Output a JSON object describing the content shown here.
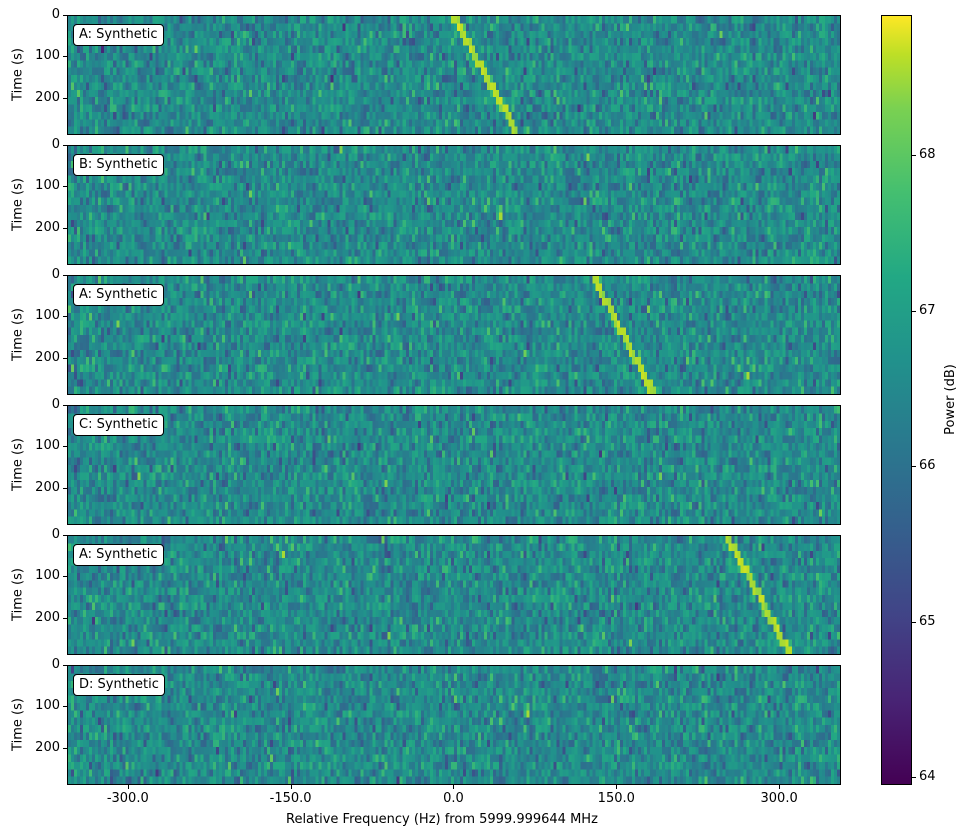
{
  "chart_data": {
    "type": "heatmap",
    "title": "",
    "xlabel": "Relative Frequency (Hz) from 5999.999644 MHz",
    "ylabel": "Time (s)",
    "xlim": [
      -356,
      357
    ],
    "ylim": [
      290,
      0
    ],
    "x_ticks": [
      "-300.0",
      "-150.0",
      "0.0",
      "150.0",
      "300.0"
    ],
    "x_tick_values": [
      -300,
      -150,
      0,
      150,
      300
    ],
    "y_ticks": [
      "0",
      "100",
      "200"
    ],
    "y_tick_values": [
      0,
      100,
      200
    ],
    "colorbar": {
      "label": "Power (dB)",
      "colormap": "viridis",
      "range": [
        63.95,
        68.9
      ],
      "ticks": [
        "64",
        "65",
        "66",
        "67",
        "68"
      ],
      "tick_values": [
        64,
        65,
        66,
        67,
        68
      ]
    },
    "panels": [
      {
        "label": "A: Synthetic",
        "signal": true,
        "drift_start_hz": 0,
        "drift_end_hz": 59
      },
      {
        "label": "B: Synthetic",
        "signal": false
      },
      {
        "label": "A: Synthetic",
        "signal": true,
        "drift_start_hz": 129,
        "drift_end_hz": 185
      },
      {
        "label": "C: Synthetic",
        "signal": false
      },
      {
        "label": "A: Synthetic",
        "signal": true,
        "drift_start_hz": 253,
        "drift_end_hz": 311
      },
      {
        "label": "D: Synthetic",
        "signal": false
      }
    ],
    "noise_mean_db": 66.3,
    "signal_peak_db": 68.3,
    "grid": false,
    "legend": "none"
  }
}
